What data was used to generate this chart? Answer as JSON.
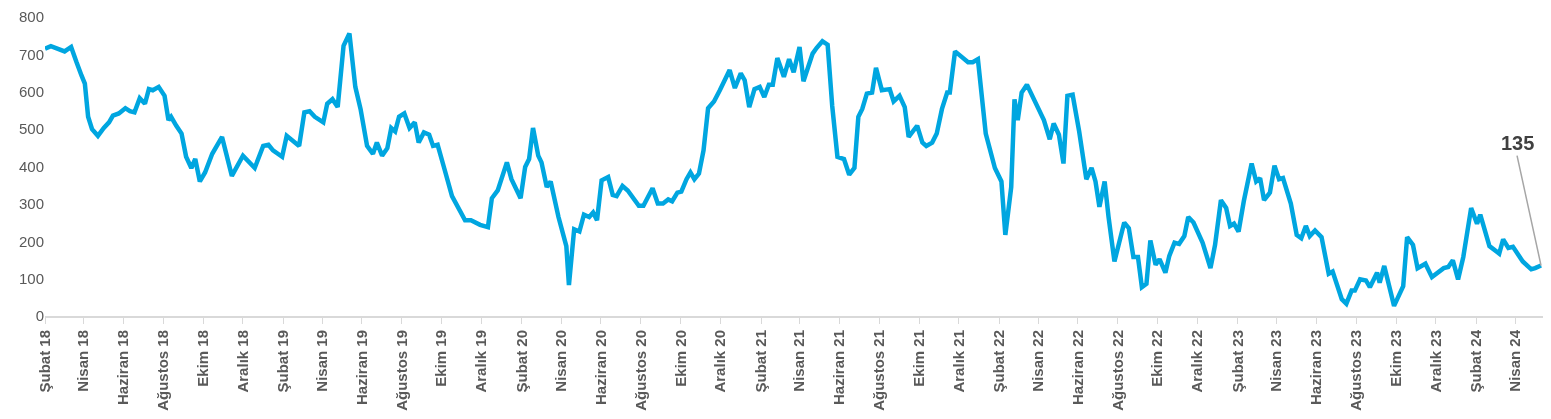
{
  "chart_data": {
    "type": "line",
    "x": [
      "2018-02-01",
      "2018-02-10",
      "2018-03-03",
      "2018-03-13",
      "2018-03-21",
      "2018-03-29",
      "2018-04-03",
      "2018-04-08",
      "2018-04-14",
      "2018-04-23",
      "2018-05-02",
      "2018-05-10",
      "2018-05-16",
      "2018-05-25",
      "2018-06-04",
      "2018-06-11",
      "2018-06-18",
      "2018-06-26",
      "2018-07-04",
      "2018-07-10",
      "2018-07-16",
      "2018-07-25",
      "2018-08-03",
      "2018-08-09",
      "2018-08-13",
      "2018-08-21",
      "2018-08-29",
      "2018-09-05",
      "2018-09-13",
      "2018-09-19",
      "2018-09-26",
      "2018-10-04",
      "2018-10-15",
      "2018-10-30",
      "2018-11-14",
      "2018-12-01",
      "2018-12-19",
      "2019-01-01",
      "2019-01-09",
      "2019-01-16",
      "2019-01-30",
      "2019-02-06",
      "2019-02-25",
      "2019-03-05",
      "2019-03-13",
      "2019-03-21",
      "2019-04-03",
      "2019-04-09",
      "2019-04-17",
      "2019-04-25",
      "2019-05-04",
      "2019-05-13",
      "2019-05-22",
      "2019-05-30",
      "2019-06-09",
      "2019-06-18",
      "2019-06-24",
      "2019-07-02",
      "2019-07-10",
      "2019-07-16",
      "2019-07-22",
      "2019-07-28",
      "2019-08-05",
      "2019-08-13",
      "2019-08-21",
      "2019-08-27",
      "2019-09-04",
      "2019-09-12",
      "2019-09-18",
      "2019-09-25",
      "2019-10-05",
      "2019-10-17",
      "2019-11-06",
      "2019-11-15",
      "2019-11-29",
      "2019-12-11",
      "2019-12-17",
      "2019-12-26",
      "2020-01-09",
      "2020-01-16",
      "2020-01-30",
      "2020-02-06",
      "2020-02-12",
      "2020-02-18",
      "2020-02-26",
      "2020-03-02",
      "2020-03-10",
      "2020-03-16",
      "2020-03-28",
      "2020-04-09",
      "2020-04-13",
      "2020-04-21",
      "2020-04-29",
      "2020-05-06",
      "2020-05-14",
      "2020-05-20",
      "2020-05-26",
      "2020-06-02",
      "2020-06-12",
      "2020-06-19",
      "2020-06-25",
      "2020-07-04",
      "2020-07-12",
      "2020-07-29",
      "2020-08-05",
      "2020-08-19",
      "2020-08-27",
      "2020-09-04",
      "2020-09-12",
      "2020-09-18",
      "2020-09-26",
      "2020-10-02",
      "2020-10-10",
      "2020-10-16",
      "2020-10-22",
      "2020-10-29",
      "2020-11-05",
      "2020-11-12",
      "2020-11-21",
      "2020-11-30",
      "2020-12-15",
      "2020-12-23",
      "2021-01-01",
      "2021-01-07",
      "2021-01-14",
      "2021-01-22",
      "2021-01-30",
      "2021-02-06",
      "2021-02-13",
      "2021-02-19",
      "2021-02-26",
      "2021-03-08",
      "2021-03-16",
      "2021-03-23",
      "2021-04-01",
      "2021-04-07",
      "2021-04-21",
      "2021-04-27",
      "2021-05-06",
      "2021-05-14",
      "2021-05-21",
      "2021-05-29",
      "2021-06-08",
      "2021-06-16",
      "2021-06-24",
      "2021-06-30",
      "2021-07-06",
      "2021-07-13",
      "2021-07-21",
      "2021-07-27",
      "2021-08-05",
      "2021-08-17",
      "2021-08-23",
      "2021-09-01",
      "2021-09-09",
      "2021-09-15",
      "2021-09-28",
      "2021-10-06",
      "2021-10-12",
      "2021-10-21",
      "2021-10-28",
      "2021-11-05",
      "2021-11-13",
      "2021-11-17",
      "2021-11-25",
      "2021-12-15",
      "2021-12-22",
      "2021-12-30",
      "2022-01-11",
      "2022-01-25",
      "2022-02-04",
      "2022-02-10",
      "2022-02-19",
      "2022-02-24",
      "2022-03-01",
      "2022-03-07",
      "2022-03-15",
      "2022-04-10",
      "2022-04-19",
      "2022-04-25",
      "2022-05-03",
      "2022-05-10",
      "2022-05-16",
      "2022-05-24",
      "2022-06-03",
      "2022-06-14",
      "2022-06-22",
      "2022-06-28",
      "2022-07-04",
      "2022-07-12",
      "2022-07-18",
      "2022-07-27",
      "2022-08-11",
      "2022-08-18",
      "2022-08-25",
      "2022-09-01",
      "2022-09-07",
      "2022-09-14",
      "2022-09-20",
      "2022-09-28",
      "2022-10-04",
      "2022-10-13",
      "2022-10-19",
      "2022-10-27",
      "2022-11-03",
      "2022-11-11",
      "2022-11-17",
      "2022-11-25",
      "2022-12-09",
      "2022-12-21",
      "2022-12-28",
      "2023-01-06",
      "2023-01-14",
      "2023-01-20",
      "2023-01-26",
      "2023-02-02",
      "2023-02-10",
      "2023-02-22",
      "2023-03-01",
      "2023-03-07",
      "2023-03-13",
      "2023-03-22",
      "2023-03-29",
      "2023-04-05",
      "2023-04-11",
      "2023-04-23",
      "2023-05-02",
      "2023-05-09",
      "2023-05-16",
      "2023-05-22",
      "2023-05-30",
      "2023-06-09",
      "2023-06-20",
      "2023-06-26",
      "2023-07-10",
      "2023-07-17",
      "2023-07-25",
      "2023-07-30",
      "2023-08-07",
      "2023-08-16",
      "2023-08-22",
      "2023-09-02",
      "2023-09-06",
      "2023-09-13",
      "2023-09-28",
      "2023-10-12",
      "2023-10-18",
      "2023-10-27",
      "2023-11-03",
      "2023-11-15",
      "2023-11-25",
      "2023-12-13",
      "2023-12-20",
      "2023-12-27",
      "2024-01-04",
      "2024-01-12",
      "2024-01-24",
      "2024-02-02",
      "2024-02-07",
      "2024-02-21",
      "2024-03-07",
      "2024-03-13",
      "2024-03-21",
      "2024-03-28",
      "2024-04-12",
      "2024-04-25",
      "2024-05-01",
      "2024-05-10"
    ],
    "series": [
      {
        "color": "#00a6e0",
        "values": [
          715,
          722,
          708,
          720,
          680,
          643,
          622,
          533,
          500,
          482,
          503,
          518,
          536,
          542,
          556,
          548,
          545,
          583,
          568,
          607,
          604,
          613,
          589,
          524,
          533,
          509,
          488,
          426,
          396,
          420,
          360,
          384,
          434,
          479,
          375,
          429,
          396,
          455,
          458,
          443,
          426,
          482,
          455,
          545,
          548,
          533,
          518,
          568,
          580,
          559,
          723,
          756,
          613,
          554,
          455,
          434,
          464,
          429,
          449,
          503,
          494,
          533,
          542,
          503,
          518,
          464,
          491,
          485,
          455,
          458,
          396,
          321,
          256,
          256,
          244,
          238,
          315,
          336,
          411,
          366,
          315,
          399,
          420,
          503,
          429,
          411,
          345,
          360,
          265,
          187,
          83,
          232,
          226,
          271,
          265,
          277,
          256,
          363,
          372,
          324,
          321,
          348,
          336,
          295,
          295,
          342,
          301,
          301,
          312,
          307,
          330,
          333,
          366,
          384,
          366,
          381,
          443,
          556,
          574,
          604,
          658,
          610,
          649,
          631,
          559,
          607,
          613,
          586,
          619,
          619,
          690,
          640,
          687,
          652,
          720,
          628,
          702,
          717,
          735,
          726,
          562,
          426,
          420,
          378,
          396,
          533,
          554,
          595,
          598,
          664,
          604,
          607,
          574,
          589,
          559,
          479,
          509,
          464,
          455,
          464,
          488,
          554,
          598,
          598,
          708,
          679,
          679,
          687,
          488,
          396,
          360,
          217,
          345,
          580,
          524,
          598,
          619,
          524,
          473,
          515,
          485,
          408,
          589,
          592,
          494,
          366,
          396,
          360,
          292,
          360,
          265,
          146,
          250,
          235,
          158,
          158,
          77,
          86,
          202,
          137,
          152,
          116,
          161,
          196,
          193,
          214,
          265,
          250,
          196,
          128,
          190,
          310,
          289,
          241,
          247,
          226,
          307,
          408,
          360,
          369,
          310,
          330,
          402,
          366,
          369,
          301,
          217,
          208,
          241,
          214,
          229,
          211,
          113,
          119,
          45,
          33,
          68,
          68,
          98,
          95,
          77,
          116,
          89,
          134,
          27,
          80,
          211,
          190,
          128,
          140,
          104,
          128,
          131,
          149,
          98,
          158,
          289,
          247,
          271,
          187,
          167,
          205,
          182,
          185,
          146,
          125,
          128,
          135
        ]
      }
    ],
    "xlim": [
      "2018-02-01",
      "2024-05-13"
    ],
    "xticks": [
      {
        "value": "2018-02-01",
        "label": "Şubat 18"
      },
      {
        "value": "2018-04-01",
        "label": "Nisan 18"
      },
      {
        "value": "2018-06-01",
        "label": "Haziran 18"
      },
      {
        "value": "2018-08-01",
        "label": "Ağustos 18"
      },
      {
        "value": "2018-10-01",
        "label": "Ekim 18"
      },
      {
        "value": "2018-12-01",
        "label": "Aralık 18"
      },
      {
        "value": "2019-02-01",
        "label": "Şubat 19"
      },
      {
        "value": "2019-04-01",
        "label": "Nisan 19"
      },
      {
        "value": "2019-06-01",
        "label": "Haziran 19"
      },
      {
        "value": "2019-08-01",
        "label": "Ağustos 19"
      },
      {
        "value": "2019-10-01",
        "label": "Ekim 19"
      },
      {
        "value": "2019-12-01",
        "label": "Aralık 19"
      },
      {
        "value": "2020-02-01",
        "label": "Şubat 20"
      },
      {
        "value": "2020-04-01",
        "label": "Nisan 20"
      },
      {
        "value": "2020-06-01",
        "label": "Haziran 20"
      },
      {
        "value": "2020-08-01",
        "label": "Ağustos 20"
      },
      {
        "value": "2020-10-01",
        "label": "Ekim 20"
      },
      {
        "value": "2020-12-01",
        "label": "Aralık 20"
      },
      {
        "value": "2021-02-01",
        "label": "Şubat 21"
      },
      {
        "value": "2021-04-01",
        "label": "Nisan 21"
      },
      {
        "value": "2021-06-01",
        "label": "Haziran 21"
      },
      {
        "value": "2021-08-01",
        "label": "Ağustos 21"
      },
      {
        "value": "2021-10-01",
        "label": "Ekim 21"
      },
      {
        "value": "2021-12-01",
        "label": "Aralık 21"
      },
      {
        "value": "2022-02-01",
        "label": "Şubat 22"
      },
      {
        "value": "2022-04-01",
        "label": "Nisan 22"
      },
      {
        "value": "2022-06-01",
        "label": "Haziran 22"
      },
      {
        "value": "2022-08-01",
        "label": "Ağustos 22"
      },
      {
        "value": "2022-10-01",
        "label": "Ekim 22"
      },
      {
        "value": "2022-12-01",
        "label": "Aralık 22"
      },
      {
        "value": "2023-02-01",
        "label": "Şubat 23"
      },
      {
        "value": "2023-04-01",
        "label": "Nisan 23"
      },
      {
        "value": "2023-06-01",
        "label": "Haziran 23"
      },
      {
        "value": "2023-08-01",
        "label": "Ağustos 23"
      },
      {
        "value": "2023-10-01",
        "label": "Ekim 23"
      },
      {
        "value": "2023-12-01",
        "label": "Aralık 23"
      },
      {
        "value": "2024-02-01",
        "label": "Şubat 24"
      },
      {
        "value": "2024-04-01",
        "label": "Nisan 24"
      }
    ],
    "ylim": [
      0,
      800
    ],
    "yticks": [
      0,
      100,
      200,
      300,
      400,
      500,
      600,
      700,
      800
    ],
    "annotations": [
      {
        "text": "135",
        "x": "2024-05-10",
        "y": 135
      }
    ],
    "grid": false,
    "marker": "none",
    "line_style": "solid"
  }
}
